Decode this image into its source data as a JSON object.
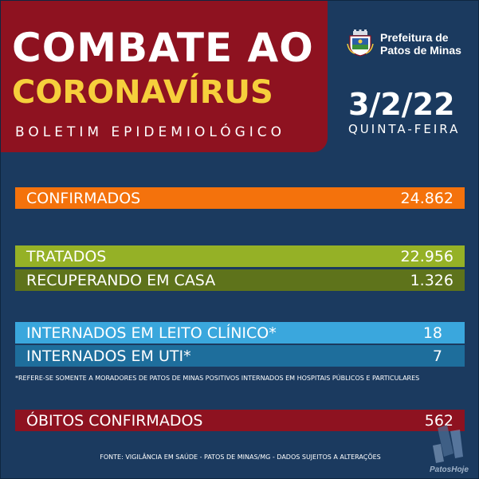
{
  "header": {
    "title_line1": "COMBATE AO",
    "title_line2": "CORONAVÍRUS",
    "subtitle": "BOLETIM EPIDEMIOLÓGICO"
  },
  "logo": {
    "line1": "Prefeitura de",
    "line2": "Patos de Minas",
    "icon": "city-shield-icon"
  },
  "date": {
    "value": "3/2/22",
    "weekday": "QUINTA-FEIRA"
  },
  "stats": {
    "confirmados": {
      "label": "CONFIRMADOS",
      "value": "24.862"
    },
    "tratados": {
      "label": "TRATADOS",
      "value": "22.956"
    },
    "recuperando": {
      "label": "RECUPERANDO EM CASA",
      "value": "1.326"
    },
    "leito": {
      "label": "INTERNADOS EM LEITO CLÍNICO*",
      "value": "18"
    },
    "uti": {
      "label": "INTERNADOS EM UTI*",
      "value": "7"
    },
    "obitos": {
      "label": "ÓBITOS CONFIRMADOS",
      "value": "562"
    }
  },
  "footnote": "*REFERE-SE SOMENTE A MORADORES DE PATOS DE MINAS POSITIVOS INTERNADOS EM HOSPITAIS PÚBLICOS E PARTICULARES",
  "source": "FONTE: VIGILÂNCIA EM SAÚDE - PATOS DE MINAS/MG - DADOS SUJEITOS A ALTERAÇÕES",
  "watermark": "PatosHoje",
  "colors": {
    "background": "#1b3a5f",
    "header": "#8e1220",
    "title_accent": "#f6cf3c",
    "confirmados": "#f4720c",
    "tratados": "#95b126",
    "recuperando": "#5e731b",
    "leito": "#3aa7dd",
    "uti": "#1e6e9c",
    "obitos": "#8e1220"
  }
}
